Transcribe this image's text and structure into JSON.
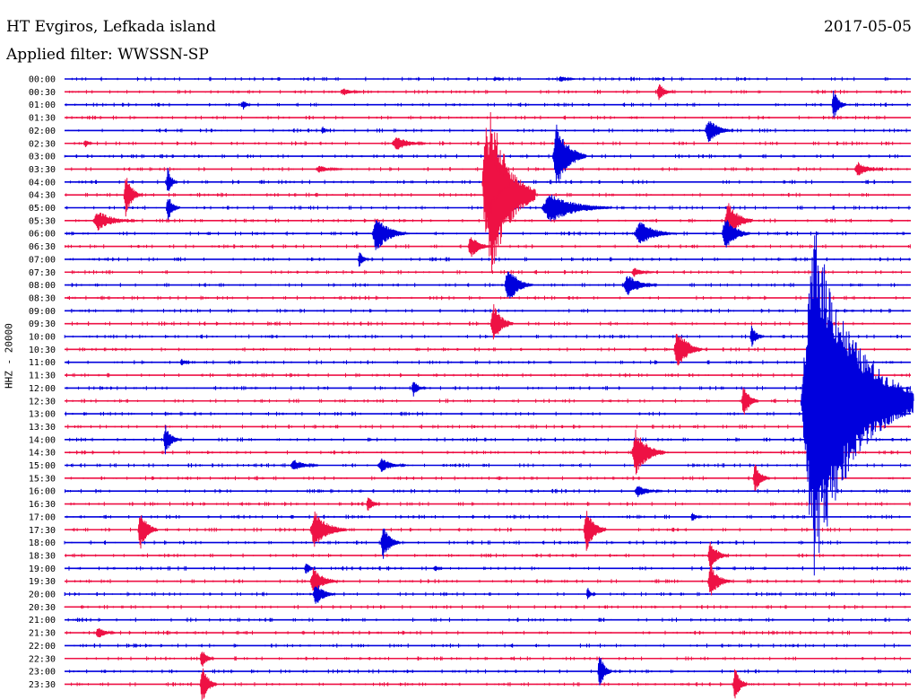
{
  "header": {
    "station": "HT Evgiros, Lefkada island",
    "filter": "Applied filter: WWSSN-SP",
    "date": "2017-05-05"
  },
  "colors": {
    "blue": "#0000dd",
    "red": "#ee1144"
  },
  "chart_data": {
    "type": "line",
    "ylabel": "HHZ - 20000",
    "trace_colors": [
      "blue",
      "red"
    ],
    "rows": [
      "00:00",
      "00:30",
      "01:00",
      "01:30",
      "02:00",
      "02:30",
      "03:00",
      "03:30",
      "04:00",
      "04:30",
      "05:00",
      "05:30",
      "06:00",
      "06:30",
      "07:00",
      "07:30",
      "08:00",
      "08:30",
      "09:00",
      "09:30",
      "10:00",
      "10:30",
      "11:00",
      "11:30",
      "12:00",
      "12:30",
      "13:00",
      "13:30",
      "14:00",
      "14:30",
      "15:00",
      "15:30",
      "16:00",
      "16:30",
      "17:00",
      "17:30",
      "18:00",
      "18:30",
      "19:00",
      "19:30",
      "20:00",
      "20:30",
      "21:00",
      "21:30",
      "22:00",
      "22:30",
      "23:00",
      "23:30"
    ],
    "x_range_minutes": [
      0,
      30
    ],
    "events": [
      {
        "row": "00:00",
        "t": 17.5,
        "amp": 0.3,
        "dur": 0.6
      },
      {
        "row": "00:00",
        "t": 15.2,
        "amp": 0.2,
        "dur": 0.4
      },
      {
        "row": "00:30",
        "t": 21.0,
        "amp": 0.7,
        "dur": 0.6
      },
      {
        "row": "00:30",
        "t": 9.8,
        "amp": 0.3,
        "dur": 0.8
      },
      {
        "row": "01:00",
        "t": 27.2,
        "amp": 1.3,
        "dur": 0.5
      },
      {
        "row": "01:00",
        "t": 6.3,
        "amp": 0.5,
        "dur": 0.3
      },
      {
        "row": "02:00",
        "t": 22.7,
        "amp": 1.0,
        "dur": 1.0
      },
      {
        "row": "02:00",
        "t": 9.1,
        "amp": 0.4,
        "dur": 0.3
      },
      {
        "row": "02:30",
        "t": 11.6,
        "amp": 0.6,
        "dur": 1.2
      },
      {
        "row": "02:30",
        "t": 0.7,
        "amp": 0.4,
        "dur": 0.3
      },
      {
        "row": "03:00",
        "t": 17.3,
        "amp": 2.6,
        "dur": 1.2
      },
      {
        "row": "03:30",
        "t": 8.9,
        "amp": 0.3,
        "dur": 1.0
      },
      {
        "row": "03:30",
        "t": 28.0,
        "amp": 0.6,
        "dur": 1.0
      },
      {
        "row": "04:00",
        "t": 3.6,
        "amp": 1.2,
        "dur": 0.4
      },
      {
        "row": "04:30",
        "t": 2.1,
        "amp": 1.8,
        "dur": 0.6
      },
      {
        "row": "04:30",
        "t": 14.9,
        "amp": 7.0,
        "dur": 1.8
      },
      {
        "row": "05:00",
        "t": 16.9,
        "amp": 1.2,
        "dur": 2.5
      },
      {
        "row": "05:00",
        "t": 3.6,
        "amp": 1.1,
        "dur": 0.5
      },
      {
        "row": "05:30",
        "t": 1.0,
        "amp": 0.8,
        "dur": 1.5
      },
      {
        "row": "05:30",
        "t": 23.4,
        "amp": 1.6,
        "dur": 1.0
      },
      {
        "row": "06:00",
        "t": 10.9,
        "amp": 1.5,
        "dur": 1.2
      },
      {
        "row": "06:00",
        "t": 20.2,
        "amp": 1.0,
        "dur": 1.5
      },
      {
        "row": "06:00",
        "t": 23.3,
        "amp": 1.4,
        "dur": 1.0
      },
      {
        "row": "06:30",
        "t": 14.3,
        "amp": 1.0,
        "dur": 0.8
      },
      {
        "row": "07:00",
        "t": 10.4,
        "amp": 0.7,
        "dur": 0.4
      },
      {
        "row": "07:30",
        "t": 20.1,
        "amp": 0.4,
        "dur": 0.8
      },
      {
        "row": "08:00",
        "t": 15.6,
        "amp": 1.6,
        "dur": 1.0
      },
      {
        "row": "08:00",
        "t": 19.8,
        "amp": 0.9,
        "dur": 1.2
      },
      {
        "row": "09:30",
        "t": 15.1,
        "amp": 1.7,
        "dur": 0.8
      },
      {
        "row": "10:00",
        "t": 24.3,
        "amp": 0.9,
        "dur": 0.5
      },
      {
        "row": "10:30",
        "t": 21.6,
        "amp": 1.8,
        "dur": 1.0
      },
      {
        "row": "11:00",
        "t": 4.1,
        "amp": 0.3,
        "dur": 0.4
      },
      {
        "row": "12:00",
        "t": 12.3,
        "amp": 0.7,
        "dur": 0.5
      },
      {
        "row": "12:30",
        "t": 24.0,
        "amp": 1.4,
        "dur": 0.6
      },
      {
        "row": "13:00",
        "t": 26.8,
        "amp": 0.8,
        "dur": 1.2
      },
      {
        "row": "14:00",
        "t": 3.5,
        "amp": 1.2,
        "dur": 0.6
      },
      {
        "row": "14:30",
        "t": 20.1,
        "amp": 1.8,
        "dur": 1.2
      },
      {
        "row": "15:00",
        "t": 8.0,
        "amp": 0.5,
        "dur": 1.0
      },
      {
        "row": "15:00",
        "t": 11.1,
        "amp": 0.6,
        "dur": 1.0
      },
      {
        "row": "15:30",
        "t": 24.4,
        "amp": 1.2,
        "dur": 0.6
      },
      {
        "row": "16:00",
        "t": 20.2,
        "amp": 0.5,
        "dur": 1.0
      },
      {
        "row": "16:30",
        "t": 10.7,
        "amp": 0.7,
        "dur": 0.5
      },
      {
        "row": "17:00",
        "t": 22.2,
        "amp": 0.4,
        "dur": 0.4
      },
      {
        "row": "17:30",
        "t": 2.6,
        "amp": 1.6,
        "dur": 0.7
      },
      {
        "row": "17:30",
        "t": 8.7,
        "amp": 1.5,
        "dur": 1.3
      },
      {
        "row": "17:30",
        "t": 18.4,
        "amp": 1.7,
        "dur": 0.8
      },
      {
        "row": "18:00",
        "t": 11.2,
        "amp": 1.4,
        "dur": 0.7
      },
      {
        "row": "18:30",
        "t": 22.8,
        "amp": 1.2,
        "dur": 0.7
      },
      {
        "row": "19:00",
        "t": 8.5,
        "amp": 0.6,
        "dur": 0.4
      },
      {
        "row": "19:00",
        "t": 13.1,
        "amp": 0.3,
        "dur": 0.3
      },
      {
        "row": "19:30",
        "t": 8.7,
        "amp": 1.1,
        "dur": 1.0
      },
      {
        "row": "19:30",
        "t": 22.8,
        "amp": 1.4,
        "dur": 0.8
      },
      {
        "row": "20:00",
        "t": 8.8,
        "amp": 1.0,
        "dur": 0.8
      },
      {
        "row": "20:00",
        "t": 18.5,
        "amp": 0.6,
        "dur": 0.3
      },
      {
        "row": "21:30",
        "t": 1.1,
        "amp": 0.5,
        "dur": 0.7
      },
      {
        "row": "22:30",
        "t": 4.8,
        "amp": 0.8,
        "dur": 0.5
      },
      {
        "row": "23:00",
        "t": 18.9,
        "amp": 1.5,
        "dur": 0.5
      },
      {
        "row": "23:30",
        "t": 4.8,
        "amp": 1.6,
        "dur": 0.6
      },
      {
        "row": "23:30",
        "t": 23.7,
        "amp": 1.5,
        "dur": 0.5
      }
    ],
    "large_events": [
      {
        "row": "04:00",
        "t": 14.8,
        "amp": 4.8,
        "dur": 1.0,
        "color": "red"
      },
      {
        "row": "12:30",
        "t": 26.1,
        "amp": 14.0,
        "dur": 4.0,
        "color": "blue"
      }
    ]
  }
}
